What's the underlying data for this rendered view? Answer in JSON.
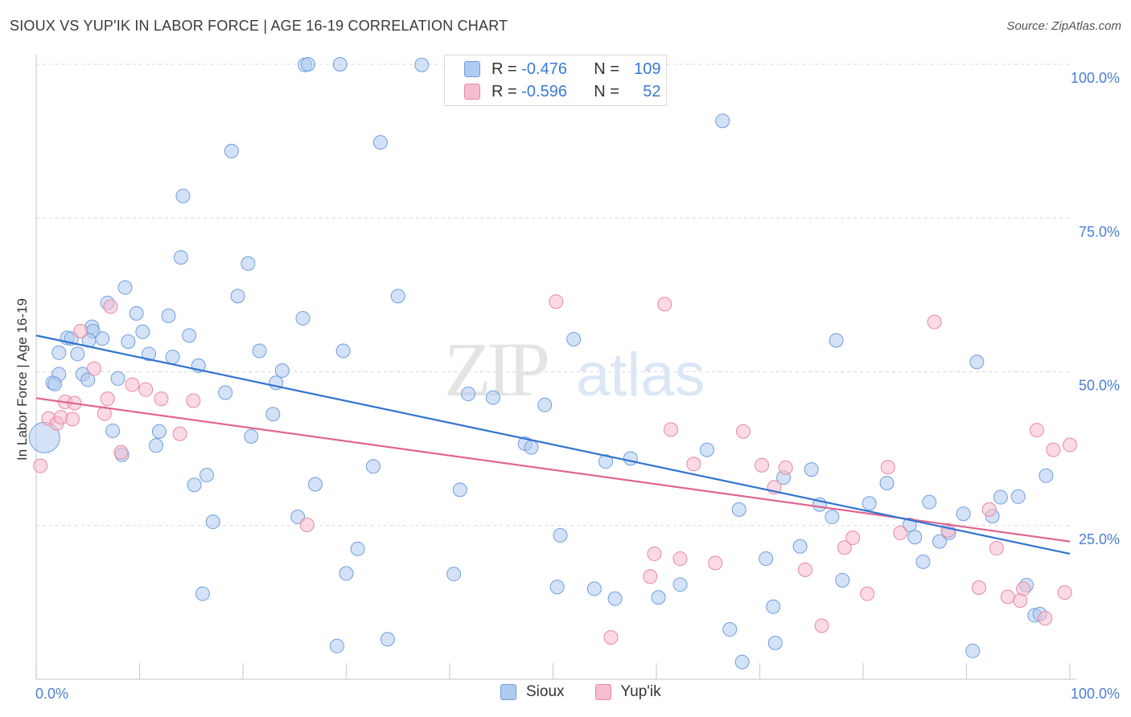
{
  "title": "SIOUX VS YUP'IK IN LABOR FORCE | AGE 16-19 CORRELATION CHART",
  "source_label": "Source: ZipAtlas.com",
  "watermark": {
    "zip": "ZIP",
    "atlas": "atlas"
  },
  "colors": {
    "sioux_fill": "#aecbf0",
    "sioux_stroke": "#6f9fdc",
    "sioux_line": "#2f74d0",
    "yupik_fill": "#f7bcd0",
    "yupik_stroke": "#e8899f",
    "yupik_line": "#e0668f",
    "grid": "#d9d9d9",
    "tick_label": "#4a7fd4"
  },
  "legend": {
    "rows": [
      {
        "r_label": "R = ",
        "r_value": "-0.476",
        "n_label": "N = ",
        "n_value": "109"
      },
      {
        "r_label": "R = ",
        "r_value": "-0.596",
        "n_label": "N = ",
        "n_value": "52"
      }
    ]
  },
  "bottom_legend": {
    "sioux": "Sioux",
    "yupik": "Yup'ik"
  },
  "chart_data": {
    "type": "scatter",
    "title": "SIOUX VS YUP'IK IN LABOR FORCE | AGE 16-19 CORRELATION CHART",
    "xlabel": "",
    "ylabel": "In Labor Force | Age 16-19",
    "xlim": [
      0,
      100
    ],
    "ylim": [
      0,
      100
    ],
    "x_tick_labels": [
      "0.0%",
      "100.0%"
    ],
    "y_ticks": [
      25,
      50,
      75,
      100
    ],
    "y_tick_labels": [
      "25.0%",
      "50.0%",
      "75.0%",
      "100.0%"
    ],
    "grid": "horizontal dashed",
    "series": [
      {
        "name": "Sioux",
        "r": -0.476,
        "n": 109,
        "trend": {
          "x": [
            0,
            100
          ],
          "y": [
            55.9,
            20.4
          ]
        },
        "points": [
          [
            0.8,
            39.3
          ],
          [
            1.6,
            48.2
          ],
          [
            2.2,
            49.6
          ],
          [
            1.8,
            48.0
          ],
          [
            2.2,
            53.1
          ],
          [
            3.0,
            55.5
          ],
          [
            3.4,
            55.4
          ],
          [
            4.0,
            52.9
          ],
          [
            4.5,
            49.6
          ],
          [
            5.4,
            57.3
          ],
          [
            5.5,
            56.6
          ],
          [
            5.1,
            55.1
          ],
          [
            5.0,
            48.7
          ],
          [
            6.4,
            55.4
          ],
          [
            6.9,
            61.2
          ],
          [
            7.4,
            40.4
          ],
          [
            7.9,
            48.9
          ],
          [
            8.3,
            36.5
          ],
          [
            8.6,
            63.7
          ],
          [
            8.9,
            54.9
          ],
          [
            9.7,
            59.5
          ],
          [
            10.3,
            56.5
          ],
          [
            10.9,
            52.9
          ],
          [
            11.6,
            38.0
          ],
          [
            11.9,
            40.3
          ],
          [
            12.8,
            59.1
          ],
          [
            13.2,
            52.4
          ],
          [
            14.0,
            68.6
          ],
          [
            14.2,
            78.6
          ],
          [
            14.8,
            55.9
          ],
          [
            15.3,
            31.6
          ],
          [
            15.7,
            51.0
          ],
          [
            16.1,
            13.9
          ],
          [
            16.5,
            33.2
          ],
          [
            17.1,
            25.6
          ],
          [
            18.3,
            46.6
          ],
          [
            18.9,
            85.9
          ],
          [
            19.5,
            62.3
          ],
          [
            20.5,
            67.6
          ],
          [
            20.8,
            39.5
          ],
          [
            21.6,
            53.4
          ],
          [
            22.9,
            43.1
          ],
          [
            23.2,
            48.2
          ],
          [
            23.8,
            50.2
          ],
          [
            25.3,
            26.4
          ],
          [
            25.8,
            58.7
          ],
          [
            26.0,
            99.9
          ],
          [
            26.3,
            100.0
          ],
          [
            27.0,
            31.7
          ],
          [
            29.4,
            100.0
          ],
          [
            29.1,
            5.4
          ],
          [
            29.7,
            53.4
          ],
          [
            30.0,
            17.2
          ],
          [
            31.1,
            21.2
          ],
          [
            32.6,
            34.6
          ],
          [
            33.3,
            87.3
          ],
          [
            34.0,
            6.5
          ],
          [
            35.0,
            62.3
          ],
          [
            37.3,
            99.9
          ],
          [
            40.4,
            17.1
          ],
          [
            41.0,
            30.8
          ],
          [
            41.8,
            46.4
          ],
          [
            44.2,
            45.8
          ],
          [
            45.3,
            99.9
          ],
          [
            47.3,
            38.3
          ],
          [
            47.9,
            37.7
          ],
          [
            49.2,
            44.6
          ],
          [
            50.4,
            15.0
          ],
          [
            50.7,
            23.4
          ],
          [
            52.0,
            55.3
          ],
          [
            54.0,
            14.7
          ],
          [
            55.1,
            35.4
          ],
          [
            56.0,
            13.1
          ],
          [
            57.5,
            35.9
          ],
          [
            60.2,
            13.3
          ],
          [
            62.3,
            15.4
          ],
          [
            64.9,
            37.3
          ],
          [
            66.4,
            90.8
          ],
          [
            67.1,
            8.1
          ],
          [
            68.0,
            27.6
          ],
          [
            68.3,
            2.8
          ],
          [
            70.6,
            19.6
          ],
          [
            71.3,
            11.8
          ],
          [
            71.5,
            5.9
          ],
          [
            72.3,
            32.8
          ],
          [
            73.9,
            21.6
          ],
          [
            75.0,
            34.1
          ],
          [
            75.8,
            28.4
          ],
          [
            77.0,
            26.4
          ],
          [
            77.4,
            55.1
          ],
          [
            78.0,
            16.1
          ],
          [
            80.6,
            28.6
          ],
          [
            82.3,
            31.9
          ],
          [
            84.5,
            25.1
          ],
          [
            85.0,
            23.1
          ],
          [
            85.8,
            19.1
          ],
          [
            86.4,
            28.8
          ],
          [
            87.4,
            22.4
          ],
          [
            88.3,
            23.8
          ],
          [
            89.7,
            26.9
          ],
          [
            90.6,
            4.6
          ],
          [
            91.0,
            51.6
          ],
          [
            92.5,
            26.5
          ],
          [
            93.3,
            29.6
          ],
          [
            95.0,
            29.7
          ],
          [
            95.8,
            15.3
          ],
          [
            96.6,
            10.4
          ],
          [
            97.1,
            10.6
          ],
          [
            97.7,
            33.1
          ]
        ]
      },
      {
        "name": "Yup'ik",
        "r": -0.596,
        "n": 52,
        "trend": {
          "x": [
            0,
            100
          ],
          "y": [
            45.7,
            22.4
          ]
        },
        "points": [
          [
            0.4,
            34.7
          ],
          [
            1.2,
            42.4
          ],
          [
            2.0,
            41.6
          ],
          [
            2.4,
            42.6
          ],
          [
            2.8,
            45.1
          ],
          [
            3.5,
            42.3
          ],
          [
            3.7,
            44.9
          ],
          [
            4.3,
            56.6
          ],
          [
            5.6,
            50.5
          ],
          [
            6.6,
            43.2
          ],
          [
            6.9,
            45.6
          ],
          [
            7.2,
            60.6
          ],
          [
            8.2,
            36.9
          ],
          [
            9.3,
            47.9
          ],
          [
            10.6,
            47.1
          ],
          [
            12.1,
            45.6
          ],
          [
            13.9,
            39.9
          ],
          [
            15.2,
            45.3
          ],
          [
            26.2,
            25.1
          ],
          [
            50.3,
            61.4
          ],
          [
            55.6,
            6.8
          ],
          [
            59.4,
            16.7
          ],
          [
            59.8,
            20.4
          ],
          [
            60.8,
            61.0
          ],
          [
            61.4,
            40.6
          ],
          [
            62.3,
            19.6
          ],
          [
            63.6,
            35.0
          ],
          [
            65.7,
            18.9
          ],
          [
            68.4,
            40.3
          ],
          [
            70.2,
            34.8
          ],
          [
            71.4,
            31.2
          ],
          [
            72.5,
            34.4
          ],
          [
            74.4,
            17.8
          ],
          [
            76.0,
            8.7
          ],
          [
            78.2,
            21.4
          ],
          [
            79.0,
            23.0
          ],
          [
            80.4,
            13.9
          ],
          [
            82.4,
            34.5
          ],
          [
            83.6,
            23.8
          ],
          [
            86.9,
            58.1
          ],
          [
            88.2,
            24.2
          ],
          [
            91.2,
            14.9
          ],
          [
            92.2,
            27.6
          ],
          [
            92.9,
            21.3
          ],
          [
            94.0,
            13.4
          ],
          [
            95.2,
            12.8
          ],
          [
            95.5,
            14.7
          ],
          [
            96.8,
            40.5
          ],
          [
            97.6,
            9.9
          ],
          [
            98.4,
            37.3
          ],
          [
            99.5,
            14.1
          ],
          [
            100.0,
            38.1
          ]
        ]
      }
    ]
  }
}
